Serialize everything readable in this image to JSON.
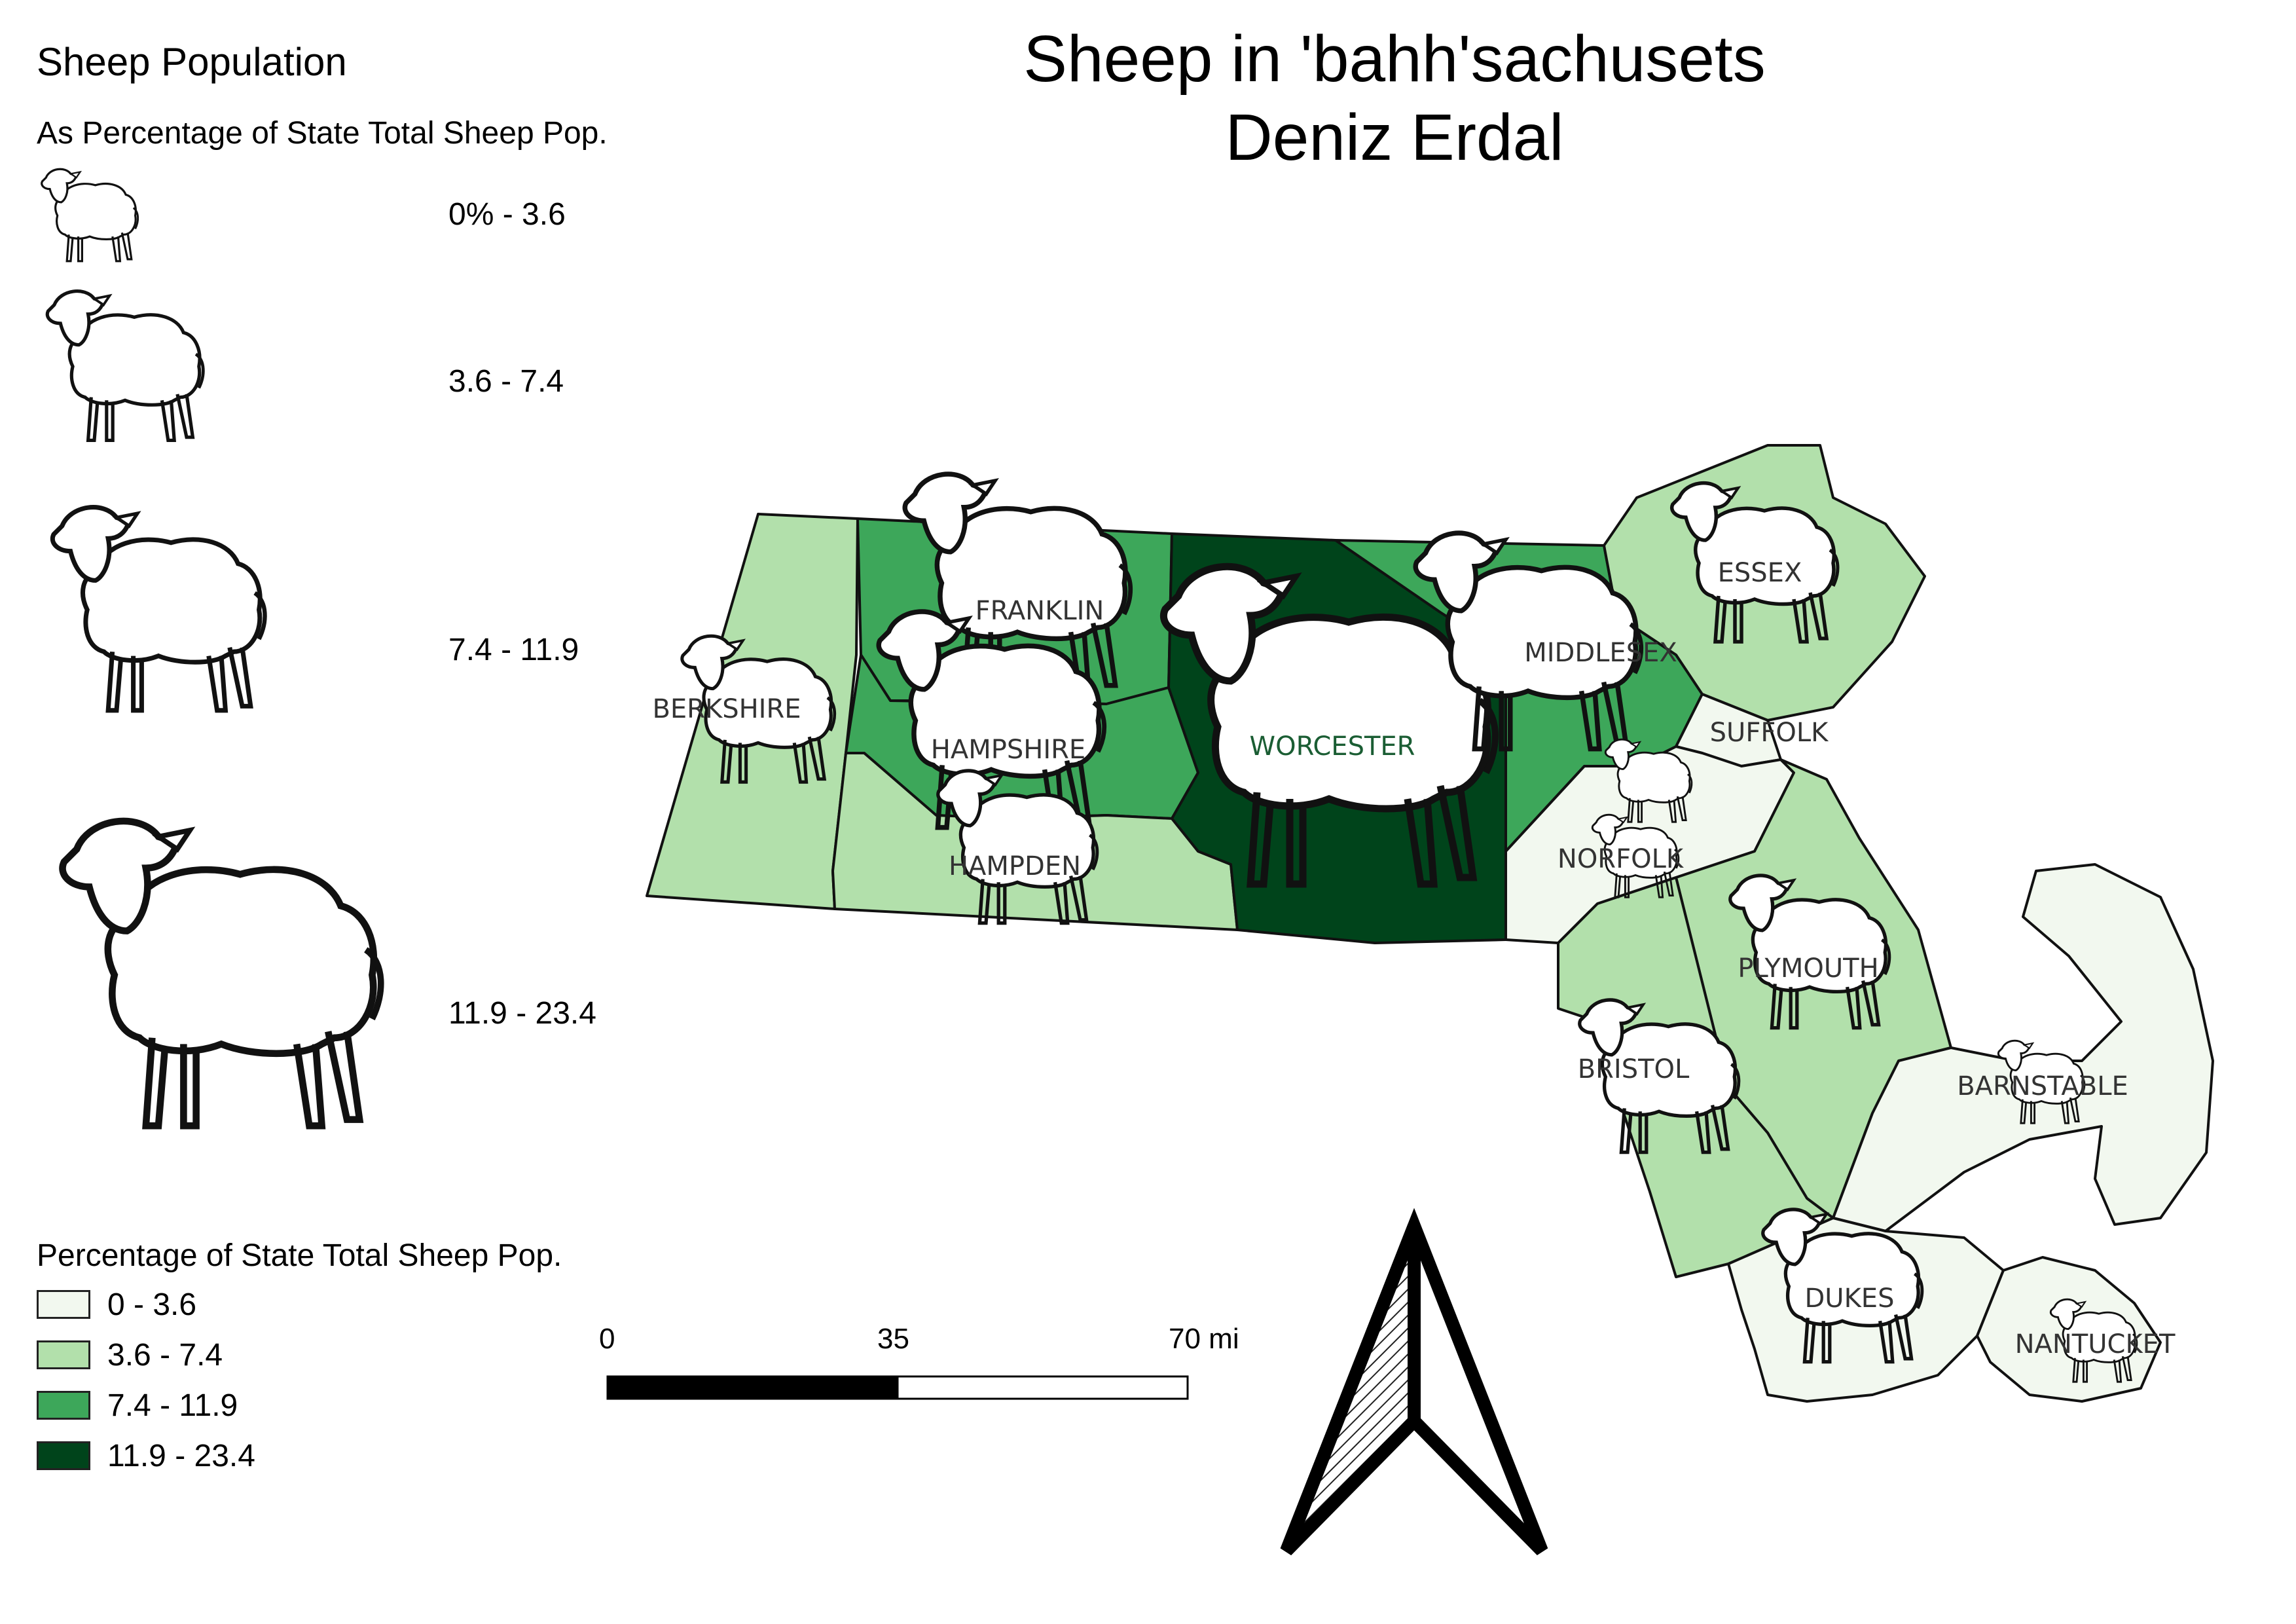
{
  "title": {
    "line1": "Sheep in 'bahh'sachusets",
    "line2": "Deniz Erdal"
  },
  "size_legend": {
    "heading": "Sheep Population",
    "subheading": "As Percentage of State Total Sheep Pop.",
    "classes": [
      {
        "label": "0% - 3.6"
      },
      {
        "label": "3.6 - 7.4"
      },
      {
        "label": "7.4 - 11.9"
      },
      {
        "label": "11.9 - 23.4"
      }
    ]
  },
  "color_legend": {
    "heading": "Percentage of State Total Sheep Pop.",
    "classes": [
      {
        "label": "0 - 3.6",
        "color": "#f2f8ef"
      },
      {
        "label": "3.6 - 7.4",
        "color": "#b2e0ab"
      },
      {
        "label": "7.4 - 11.9",
        "color": "#3da75a"
      },
      {
        "label": "11.9 - 23.4",
        "color": "#00441b"
      }
    ]
  },
  "scale_bar": {
    "ticks": [
      "0",
      "35",
      "70 mi"
    ]
  },
  "counties": [
    {
      "name": "BERKSHIRE",
      "class": 1
    },
    {
      "name": "FRANKLIN",
      "class": 2
    },
    {
      "name": "HAMPSHIRE",
      "class": 2
    },
    {
      "name": "HAMPDEN",
      "class": 1
    },
    {
      "name": "WORCESTER",
      "class": 3
    },
    {
      "name": "MIDDLESEX",
      "class": 2
    },
    {
      "name": "ESSEX",
      "class": 1
    },
    {
      "name": "SUFFOLK",
      "class": 0
    },
    {
      "name": "NORFOLK",
      "class": 0
    },
    {
      "name": "PLYMOUTH",
      "class": 1
    },
    {
      "name": "BRISTOL",
      "class": 1
    },
    {
      "name": "BARNSTABLE",
      "class": 0
    },
    {
      "name": "DUKES",
      "class": 0
    },
    {
      "name": "NANTUCKET",
      "class": 0
    }
  ]
}
